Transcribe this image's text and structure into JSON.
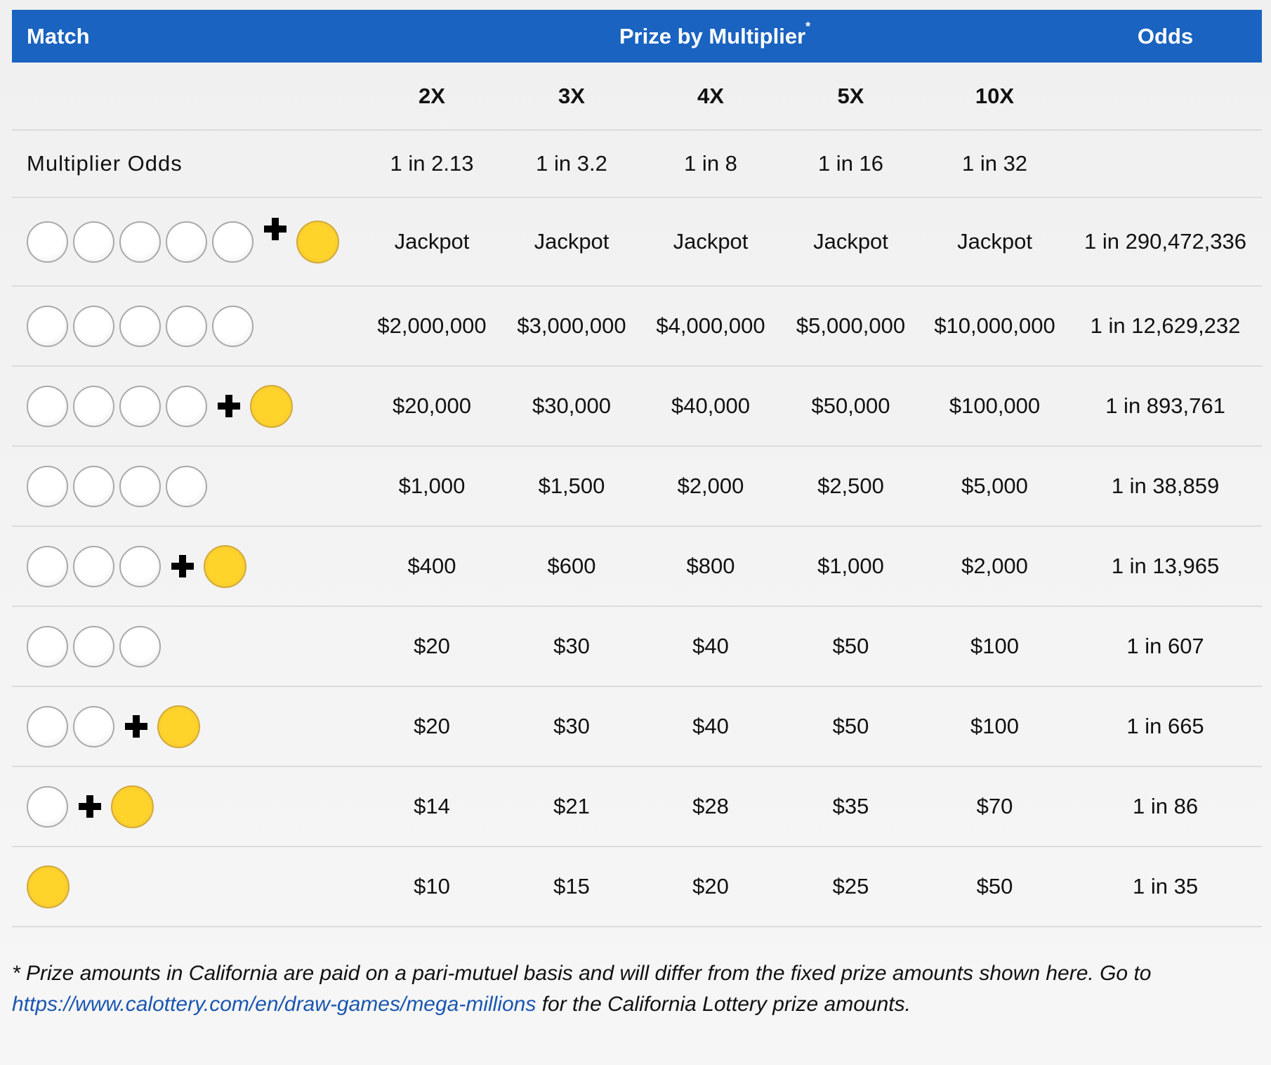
{
  "header": {
    "match": "Match",
    "prize": "Prize by Multiplier",
    "prize_mark": "*",
    "odds": "Odds"
  },
  "multipliers": [
    "2X",
    "3X",
    "4X",
    "5X",
    "10X"
  ],
  "multiplier_odds": {
    "label": "Multiplier Odds",
    "values": [
      "1 in 2.13",
      "1 in 3.2",
      "1 in 8",
      "1 in 16",
      "1 in 32"
    ]
  },
  "rows": [
    {
      "prizes": [
        "Jackpot",
        "Jackpot",
        "Jackpot",
        "Jackpot",
        "Jackpot"
      ],
      "odds": "1 in 290,472,336"
    },
    {
      "prizes": [
        "$2,000,000",
        "$3,000,000",
        "$4,000,000",
        "$5,000,000",
        "$10,000,000"
      ],
      "odds": "1 in 12,629,232"
    },
    {
      "prizes": [
        "$20,000",
        "$30,000",
        "$40,000",
        "$50,000",
        "$100,000"
      ],
      "odds": "1 in 893,761"
    },
    {
      "prizes": [
        "$1,000",
        "$1,500",
        "$2,000",
        "$2,500",
        "$5,000"
      ],
      "odds": "1 in 38,859"
    },
    {
      "prizes": [
        "$400",
        "$600",
        "$800",
        "$1,000",
        "$2,000"
      ],
      "odds": "1 in 13,965"
    },
    {
      "prizes": [
        "$20",
        "$30",
        "$40",
        "$50",
        "$100"
      ],
      "odds": "1 in 607"
    },
    {
      "prizes": [
        "$20",
        "$30",
        "$40",
        "$50",
        "$100"
      ],
      "odds": "1 in 665"
    },
    {
      "prizes": [
        "$14",
        "$21",
        "$28",
        "$35",
        "$70"
      ],
      "odds": "1 in 86"
    },
    {
      "prizes": [
        "$10",
        "$15",
        "$20",
        "$25",
        "$50"
      ],
      "odds": "1 in 35"
    }
  ],
  "footnote": {
    "before": "* Prize amounts in California are paid on a pari-mutuel basis and will differ from the fixed prize amounts shown here. Go to ",
    "link": "https://www.calottery.com/en/draw-games/mega-millions",
    "after": " for the California Lottery prize amounts."
  }
}
